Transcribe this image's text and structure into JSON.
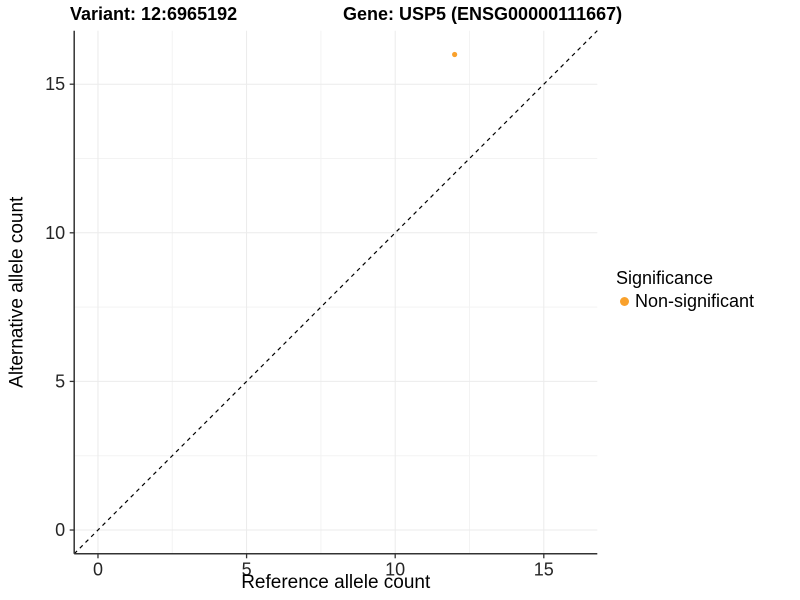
{
  "header": {
    "title_left": "Variant: 12:6965192",
    "title_right": "Gene: USP5 (ENSG00000111667)"
  },
  "chart_data": {
    "type": "scatter",
    "title": "Variant: 12:6965192   Gene: USP5 (ENSG00000111667)",
    "xlabel": "Reference allele count",
    "ylabel": "Alternative allele count",
    "xlim": [
      -0.8,
      16.8
    ],
    "ylim": [
      -0.8,
      16.8
    ],
    "x_major_ticks": [
      0,
      5,
      10,
      15
    ],
    "y_major_ticks": [
      0,
      5,
      10,
      15
    ],
    "x_minor_ticks": [
      2.5,
      7.5,
      12.5
    ],
    "y_minor_ticks": [
      2.5,
      7.5,
      12.5
    ],
    "grid": true,
    "identity_line": {
      "style": "dashed",
      "from": [
        -0.8,
        -0.8
      ],
      "to": [
        16.8,
        16.8
      ],
      "color": "#000000"
    },
    "series": [
      {
        "name": "Non-significant",
        "color": "#F9A12C",
        "points": [
          {
            "x": 12,
            "y": 16
          }
        ],
        "point_radius": 2.6
      }
    ],
    "legend": {
      "title": "Significance",
      "position": "right",
      "items": [
        {
          "label": "Non-significant",
          "color": "#F9A12C"
        }
      ]
    },
    "style": {
      "background": "#ffffff",
      "grid_major_color": "#EBEBEB",
      "grid_minor_color": "#F3F3F3",
      "axis_line_color": "#333333",
      "tick_color": "#333333",
      "tick_label_color": "#262626",
      "axis_title_color": "#000000"
    }
  }
}
